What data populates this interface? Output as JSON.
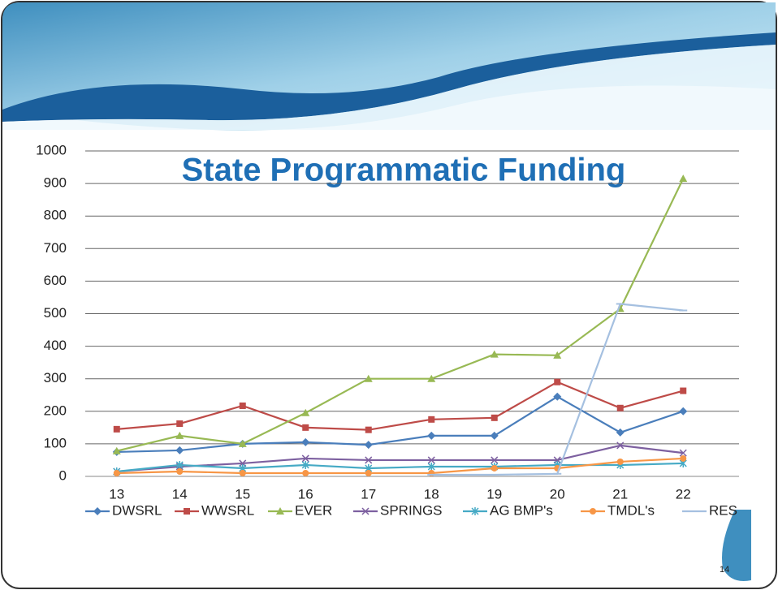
{
  "chart_data": {
    "type": "line",
    "title": "State Programmatic Funding",
    "categories": [
      "13",
      "14",
      "15",
      "16",
      "17",
      "18",
      "19",
      "20",
      "21",
      "22"
    ],
    "series": [
      {
        "name": "DWSRL",
        "color": "#4a7ebb",
        "marker": "diamond",
        "values": [
          75,
          80,
          100,
          105,
          97,
          125,
          125,
          245,
          135,
          200
        ]
      },
      {
        "name": "WWSRL",
        "color": "#be4b48",
        "marker": "square",
        "values": [
          145,
          162,
          217,
          150,
          143,
          175,
          180,
          290,
          210,
          263
        ]
      },
      {
        "name": "EVER",
        "color": "#98b954",
        "marker": "triangle",
        "values": [
          78,
          125,
          100,
          195,
          300,
          300,
          375,
          372,
          515,
          915
        ]
      },
      {
        "name": "SPRINGS",
        "color": "#7d60a0",
        "marker": "x",
        "values": [
          15,
          30,
          40,
          55,
          50,
          50,
          50,
          50,
          95,
          72
        ]
      },
      {
        "name": "AG BMP's",
        "color": "#46aac5",
        "marker": "star",
        "values": [
          15,
          35,
          25,
          35,
          25,
          30,
          30,
          35,
          35,
          40
        ]
      },
      {
        "name": "TMDL's",
        "color": "#f79646",
        "marker": "circle",
        "values": [
          10,
          15,
          10,
          10,
          10,
          10,
          25,
          25,
          45,
          55
        ]
      },
      {
        "name": "RES",
        "color": "#a5c0e0",
        "marker": "dash",
        "values": [
          null,
          null,
          null,
          null,
          null,
          5,
          5,
          8,
          530,
          510
        ]
      }
    ],
    "ylim": [
      0,
      1000
    ],
    "yticks": [
      0,
      100,
      200,
      300,
      400,
      500,
      600,
      700,
      800,
      900,
      1000
    ],
    "grid": true
  },
  "page_number": "14"
}
